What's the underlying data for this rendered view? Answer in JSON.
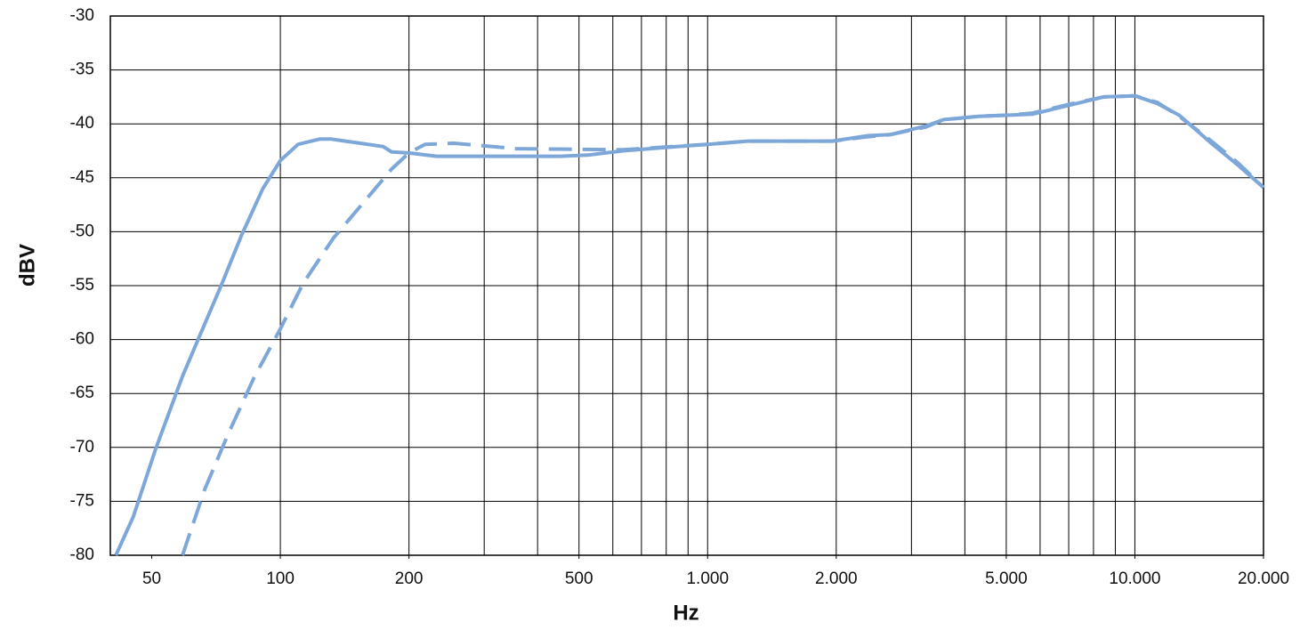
{
  "chart_data": {
    "type": "line",
    "xlabel": "Hz",
    "ylabel": "dBV",
    "xscale": "log",
    "xlim": [
      40,
      20000
    ],
    "ylim": [
      -80,
      -30
    ],
    "xticks": [
      50,
      100,
      200,
      500,
      {
        "value": 1000,
        "label": "1.000"
      },
      {
        "value": 2000,
        "label": "2.000"
      },
      {
        "value": 5000,
        "label": "5.000"
      },
      {
        "value": 10000,
        "label": "10.000"
      },
      {
        "value": 20000,
        "label": "20.000"
      }
    ],
    "xgrid": [
      100,
      200,
      300,
      400,
      500,
      600,
      700,
      800,
      900,
      1000,
      2000,
      3000,
      4000,
      5000,
      6000,
      7000,
      8000,
      9000,
      10000,
      20000
    ],
    "yticks": [
      -80,
      -75,
      -70,
      -65,
      -60,
      -55,
      -50,
      -45,
      -40,
      -35,
      -30
    ],
    "grid": true,
    "series": [
      {
        "color": "#7da7d9",
        "style": "solid",
        "x": [
          41.2,
          45.3,
          51,
          59,
          65,
          73,
          81,
          91,
          100,
          110,
          124,
          131,
          174,
          182,
          200,
          232,
          453,
          524,
          634,
          846,
          1000,
          1241,
          1957,
          2370,
          2674,
          3240,
          3570,
          3830,
          4310,
          5000,
          5760,
          6980,
          8450,
          10000,
          11270,
          12700,
          15000,
          17400,
          20000
        ],
        "values": [
          -80,
          -76.4,
          -70.2,
          -63.4,
          -59.5,
          -54.8,
          -50.4,
          -46,
          -43.4,
          -41.9,
          -41.4,
          -41.4,
          -42.1,
          -42.6,
          -42.7,
          -43,
          -43,
          -42.9,
          -42.5,
          -42.1,
          -41.9,
          -41.6,
          -41.6,
          -41.1,
          -41,
          -40.2,
          -39.6,
          -39.5,
          -39.3,
          -39.2,
          -39.1,
          -38.3,
          -37.5,
          -37.4,
          -38.1,
          -39.2,
          -41.7,
          -43.8,
          -45.9
        ]
      },
      {
        "color": "#7da7d9",
        "style": "dashed",
        "x": [
          59,
          66.5,
          75,
          86.6,
          100,
          113,
          133,
          158,
          182,
          200,
          218,
          255,
          357,
          634,
          1000,
          1241,
          1957,
          2370,
          2674,
          3240,
          3570,
          3830,
          4310,
          5000,
          5760,
          6980,
          8450,
          10000,
          11270,
          12700,
          15000,
          17400,
          20000
        ],
        "values": [
          -80,
          -73.9,
          -69,
          -63.6,
          -59,
          -54.8,
          -50.6,
          -47.1,
          -44.2,
          -42.7,
          -41.9,
          -41.8,
          -42.3,
          -42.4,
          -41.9,
          -41.6,
          -41.6,
          -41.2,
          -41,
          -40.3,
          -39.6,
          -39.5,
          -39.3,
          -39.2,
          -39,
          -38.2,
          -37.5,
          -37.4,
          -38,
          -39.3,
          -41.5,
          -43.6,
          -45.9
        ]
      }
    ]
  }
}
